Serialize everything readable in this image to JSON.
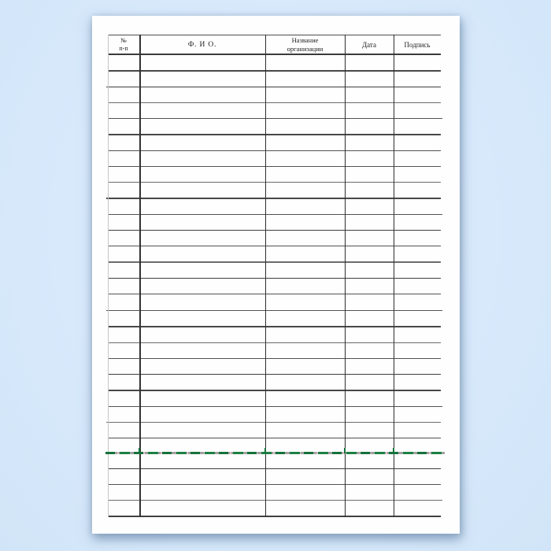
{
  "page": {
    "background_color": "#d7e9fb",
    "paper_color": "#fefefe",
    "line_color": "#525252"
  },
  "table": {
    "row_count": 29,
    "columns": [
      {
        "name": "number",
        "line1": "№",
        "line2": "п-п"
      },
      {
        "name": "full-name",
        "line1": "Ф. И О.",
        "line2": ""
      },
      {
        "name": "organization",
        "line1": "Название",
        "line2": "организации"
      },
      {
        "name": "date",
        "line1": "Дата",
        "line2": ""
      },
      {
        "name": "signature",
        "line1": "Подпись",
        "line2": ""
      }
    ],
    "artifact": {
      "row_index": 24,
      "color": "#17743c"
    }
  }
}
